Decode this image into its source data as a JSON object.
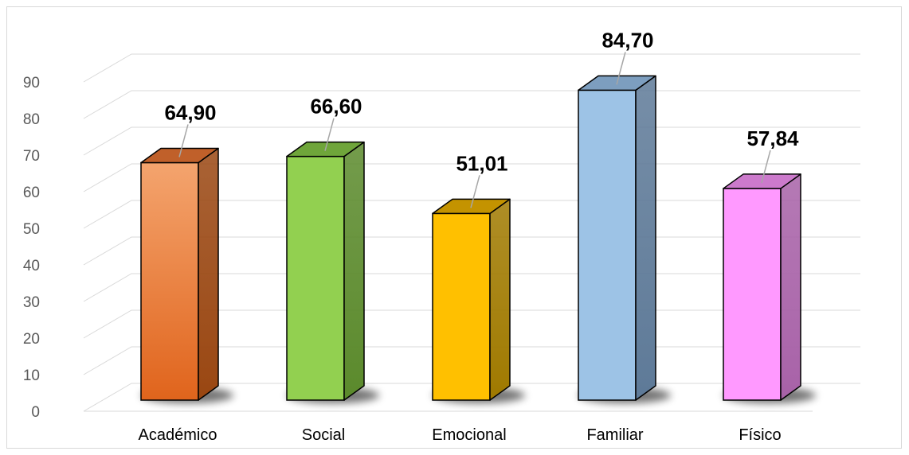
{
  "chart_data": {
    "type": "bar",
    "style": "3d-column",
    "categories": [
      "Académico",
      "Social",
      "Emocional",
      "Familiar",
      "Físico"
    ],
    "values": [
      64.9,
      66.6,
      51.01,
      84.7,
      57.84
    ],
    "data_labels": [
      "64,90",
      "66,60",
      "51,01",
      "84,70",
      "57,84"
    ],
    "ylim": [
      0,
      90
    ],
    "y_ticks": [
      "0",
      "10",
      "20",
      "30",
      "40",
      "50",
      "60",
      "70",
      "80",
      "90"
    ],
    "grid": true,
    "legend": "none",
    "colors": [
      {
        "front_top": "#f4a46e",
        "front_bottom": "#e0641c",
        "side": "#9a4712",
        "top": "#c0602a"
      },
      {
        "front_top": "#92d050",
        "front_bottom": "#92d050",
        "side": "#5b8a2c",
        "top": "#6fa53a"
      },
      {
        "front_top": "#ffc000",
        "front_bottom": "#ffc000",
        "side": "#a07a00",
        "top": "#c49300"
      },
      {
        "front_top": "#9dc3e6",
        "front_bottom": "#9dc3e6",
        "side": "#5e7a98",
        "top": "#7d9ebf"
      },
      {
        "front_top": "#ff99ff",
        "front_bottom": "#ff99ff",
        "side": "#a862a8",
        "top": "#cc7acc"
      }
    ]
  }
}
